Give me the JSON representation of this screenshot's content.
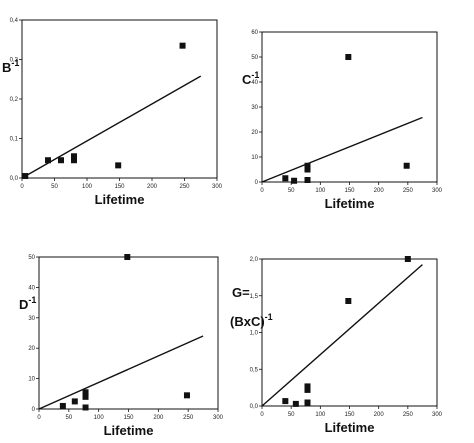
{
  "chart_data": [
    {
      "type": "scatter",
      "ylabel": "B-1",
      "ylabel_base": "B",
      "ylabel_sup": "-1",
      "xlabel": "Lifetime",
      "xlim": [
        0,
        300
      ],
      "ylim": [
        0,
        0.4
      ],
      "x_ticks": [
        "0",
        "50",
        "100",
        "150",
        "200",
        "250",
        "300"
      ],
      "y_ticks": [
        "0,0",
        "0,1",
        "0,2",
        "0,3",
        "0,4"
      ],
      "points": [
        {
          "x": 5,
          "y": 0.005
        },
        {
          "x": 40,
          "y": 0.045
        },
        {
          "x": 60,
          "y": 0.045
        },
        {
          "x": 80,
          "y": 0.045
        },
        {
          "x": 80,
          "y": 0.055
        },
        {
          "x": 148,
          "y": 0.032
        },
        {
          "x": 247,
          "y": 0.335
        }
      ],
      "fit_line": [
        {
          "x": 0,
          "y": 0.0
        },
        {
          "x": 275,
          "y": 0.258
        }
      ]
    },
    {
      "type": "scatter",
      "ylabel": "C-1",
      "ylabel_base": "C",
      "ylabel_sup": "-1",
      "xlabel": "Lifetime",
      "xlim": [
        0,
        300
      ],
      "ylim": [
        0,
        60
      ],
      "x_ticks": [
        "0",
        "50",
        "100",
        "150",
        "200",
        "250",
        "300"
      ],
      "y_ticks": [
        "0",
        "10",
        "20",
        "30",
        "40",
        "50",
        "60"
      ],
      "points": [
        {
          "x": 40,
          "y": 1.5
        },
        {
          "x": 55,
          "y": 0.5
        },
        {
          "x": 78,
          "y": 0.8
        },
        {
          "x": 78,
          "y": 5.0
        },
        {
          "x": 78,
          "y": 6.5
        },
        {
          "x": 148,
          "y": 50
        },
        {
          "x": 248,
          "y": 6.5
        }
      ],
      "fit_line": [
        {
          "x": 0,
          "y": 0.0
        },
        {
          "x": 275,
          "y": 25.8
        }
      ]
    },
    {
      "type": "scatter",
      "ylabel": "D-1",
      "ylabel_base": "D",
      "ylabel_sup": "-1",
      "xlabel": "Lifetime",
      "xlim": [
        0,
        300
      ],
      "ylim": [
        0,
        50
      ],
      "x_ticks": [
        "0",
        "50",
        "100",
        "150",
        "200",
        "250",
        "300"
      ],
      "y_ticks": [
        "0",
        "10",
        "20",
        "30",
        "40",
        "50"
      ],
      "points": [
        {
          "x": 40,
          "y": 1.0
        },
        {
          "x": 60,
          "y": 2.5
        },
        {
          "x": 78,
          "y": 0.5
        },
        {
          "x": 78,
          "y": 4.0
        },
        {
          "x": 78,
          "y": 5.5
        },
        {
          "x": 148,
          "y": 50
        },
        {
          "x": 248,
          "y": 4.5
        }
      ],
      "fit_line": [
        {
          "x": 0,
          "y": 0.0
        },
        {
          "x": 275,
          "y": 24.0
        }
      ]
    },
    {
      "type": "scatter",
      "ylabel": "G= (BxC)-1",
      "ylabel_line1": "G=",
      "ylabel_line2": "(BxC)",
      "ylabel_sup": "-1",
      "xlabel": "Lifetime",
      "xlim": [
        0,
        300
      ],
      "ylim": [
        0,
        2.1
      ],
      "x_ticks": [
        "0",
        "50",
        "100",
        "150",
        "200",
        "250",
        "300"
      ],
      "y_ticks": [
        "0,0",
        "0,5",
        "1,0",
        "1,5",
        "2,0"
      ],
      "points": [
        {
          "x": 40,
          "y": 0.07
        },
        {
          "x": 58,
          "y": 0.03
        },
        {
          "x": 78,
          "y": 0.05
        },
        {
          "x": 78,
          "y": 0.23
        },
        {
          "x": 78,
          "y": 0.28
        },
        {
          "x": 148,
          "y": 1.5
        },
        {
          "x": 250,
          "y": 2.1
        }
      ],
      "fit_line": [
        {
          "x": 0,
          "y": 0.0
        },
        {
          "x": 275,
          "y": 2.02
        }
      ]
    }
  ]
}
